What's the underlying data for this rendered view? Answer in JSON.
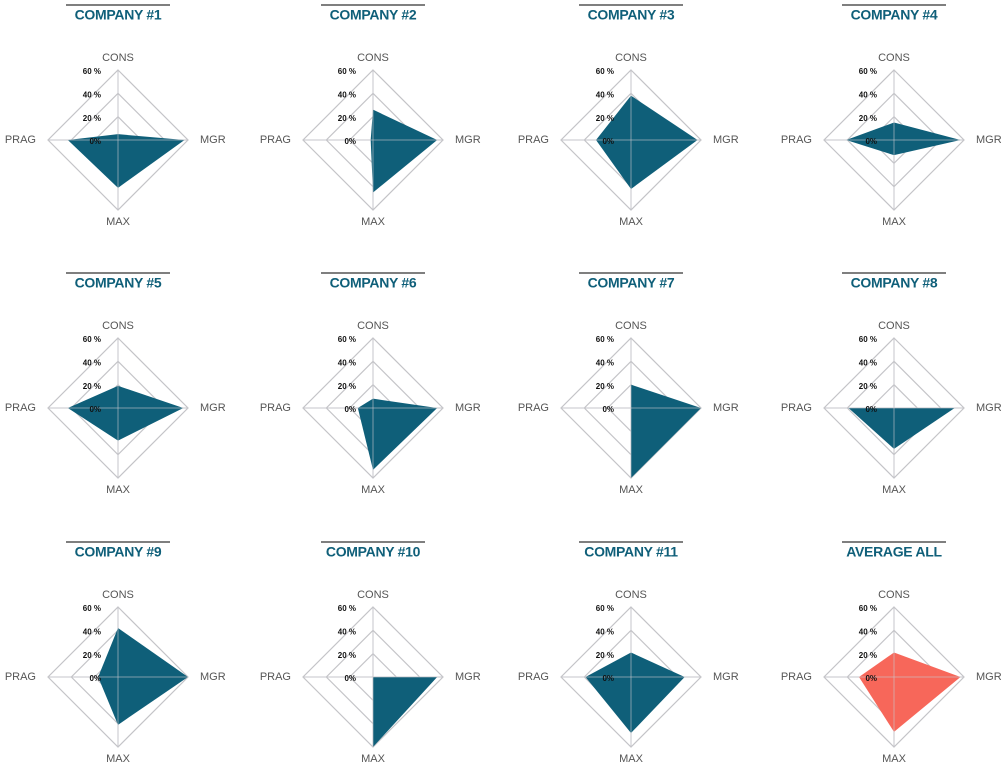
{
  "chart_data": [
    {
      "type": "radar",
      "title": "COMPANY #1",
      "categories": [
        "CONS",
        "MGR",
        "MAX",
        "PRAG"
      ],
      "values": [
        5,
        57,
        41,
        43
      ],
      "color": "#0f5f79",
      "rlim": [
        0,
        60
      ],
      "rticks": [
        {
          "value": 0,
          "label": "0%"
        },
        {
          "value": 20,
          "label": "20 %"
        },
        {
          "value": 40,
          "label": "40 %"
        },
        {
          "value": 60,
          "label": "60 %"
        }
      ]
    },
    {
      "type": "radar",
      "title": "COMPANY #2",
      "categories": [
        "CONS",
        "MGR",
        "MAX",
        "PRAG"
      ],
      "values": [
        26,
        55,
        45,
        2
      ],
      "color": "#0f5f79",
      "rlim": [
        0,
        60
      ],
      "rticks": [
        {
          "value": 0,
          "label": "0%"
        },
        {
          "value": 20,
          "label": "20 %"
        },
        {
          "value": 40,
          "label": "40 %"
        },
        {
          "value": 60,
          "label": "60 %"
        }
      ]
    },
    {
      "type": "radar",
      "title": "COMPANY #3",
      "categories": [
        "CONS",
        "MGR",
        "MAX",
        "PRAG"
      ],
      "values": [
        38,
        57,
        42,
        30
      ],
      "color": "#0f5f79",
      "rlim": [
        0,
        60
      ],
      "rticks": [
        {
          "value": 0,
          "label": "0%"
        },
        {
          "value": 20,
          "label": "20 %"
        },
        {
          "value": 40,
          "label": "40 %"
        },
        {
          "value": 60,
          "label": "60 %"
        }
      ]
    },
    {
      "type": "radar",
      "title": "COMPANY #4",
      "categories": [
        "CONS",
        "MGR",
        "MAX",
        "PRAG"
      ],
      "values": [
        15,
        57,
        13,
        41
      ],
      "color": "#0f5f79",
      "rlim": [
        0,
        60
      ],
      "rticks": [
        {
          "value": 0,
          "label": "0%"
        },
        {
          "value": 20,
          "label": "20 %"
        },
        {
          "value": 40,
          "label": "40 %"
        },
        {
          "value": 60,
          "label": "60 %"
        }
      ]
    },
    {
      "type": "radar",
      "title": "COMPANY #5",
      "categories": [
        "CONS",
        "MGR",
        "MAX",
        "PRAG"
      ],
      "values": [
        19,
        56,
        28,
        43
      ],
      "color": "#0f5f79",
      "rlim": [
        0,
        60
      ],
      "rticks": [
        {
          "value": 0,
          "label": "0%"
        },
        {
          "value": 20,
          "label": "20 %"
        },
        {
          "value": 40,
          "label": "40 %"
        },
        {
          "value": 60,
          "label": "60 %"
        }
      ]
    },
    {
      "type": "radar",
      "title": "COMPANY #6",
      "categories": [
        "CONS",
        "MGR",
        "MAX",
        "PRAG"
      ],
      "values": [
        8,
        55,
        53,
        13
      ],
      "color": "#0f5f79",
      "rlim": [
        0,
        60
      ],
      "rticks": [
        {
          "value": 0,
          "label": "0%"
        },
        {
          "value": 20,
          "label": "20 %"
        },
        {
          "value": 40,
          "label": "40 %"
        },
        {
          "value": 60,
          "label": "60 %"
        }
      ]
    },
    {
      "type": "radar",
      "title": "COMPANY #7",
      "categories": [
        "CONS",
        "MGR",
        "MAX",
        "PRAG"
      ],
      "values": [
        20,
        60,
        60,
        0
      ],
      "color": "#0f5f79",
      "rlim": [
        0,
        60
      ],
      "rticks": [
        {
          "value": 0,
          "label": "0%"
        },
        {
          "value": 20,
          "label": "20 %"
        },
        {
          "value": 40,
          "label": "40 %"
        },
        {
          "value": 60,
          "label": "60 %"
        }
      ]
    },
    {
      "type": "radar",
      "title": "COMPANY #8",
      "categories": [
        "CONS",
        "MGR",
        "MAX",
        "PRAG"
      ],
      "values": [
        0,
        52,
        35,
        39
      ],
      "color": "#0f5f79",
      "rlim": [
        0,
        60
      ],
      "rticks": [
        {
          "value": 0,
          "label": "0%"
        },
        {
          "value": 20,
          "label": "20 %"
        },
        {
          "value": 40,
          "label": "40 %"
        },
        {
          "value": 60,
          "label": "60 %"
        }
      ]
    },
    {
      "type": "radar",
      "title": "COMPANY #9",
      "categories": [
        "CONS",
        "MGR",
        "MAX",
        "PRAG"
      ],
      "values": [
        42,
        60,
        41,
        17
      ],
      "color": "#0f5f79",
      "rlim": [
        0,
        60
      ],
      "rticks": [
        {
          "value": 0,
          "label": "0%"
        },
        {
          "value": 20,
          "label": "20 %"
        },
        {
          "value": 40,
          "label": "40 %"
        },
        {
          "value": 60,
          "label": "60 %"
        }
      ]
    },
    {
      "type": "radar",
      "title": "COMPANY #10",
      "categories": [
        "CONS",
        "MGR",
        "MAX",
        "PRAG"
      ],
      "values": [
        0,
        55,
        60,
        0
      ],
      "color": "#0f5f79",
      "rlim": [
        0,
        60
      ],
      "rticks": [
        {
          "value": 0,
          "label": "0%"
        },
        {
          "value": 20,
          "label": "20 %"
        },
        {
          "value": 40,
          "label": "40 %"
        },
        {
          "value": 60,
          "label": "60 %"
        }
      ]
    },
    {
      "type": "radar",
      "title": "COMPANY #11",
      "categories": [
        "CONS",
        "MGR",
        "MAX",
        "PRAG"
      ],
      "values": [
        21,
        46,
        48,
        39
      ],
      "color": "#0f5f79",
      "rlim": [
        0,
        60
      ],
      "rticks": [
        {
          "value": 0,
          "label": "0%"
        },
        {
          "value": 20,
          "label": "20 %"
        },
        {
          "value": 40,
          "label": "40 %"
        },
        {
          "value": 60,
          "label": "60 %"
        }
      ]
    },
    {
      "type": "radar",
      "title": "AVERAGE ALL",
      "categories": [
        "CONS",
        "MGR",
        "MAX",
        "PRAG"
      ],
      "values": [
        21,
        57,
        47,
        30
      ],
      "color": "#f7675a",
      "rlim": [
        0,
        60
      ],
      "rticks": [
        {
          "value": 0,
          "label": "0%"
        },
        {
          "value": 20,
          "label": "20 %"
        },
        {
          "value": 40,
          "label": "40 %"
        },
        {
          "value": 60,
          "label": "60 %"
        }
      ]
    }
  ]
}
